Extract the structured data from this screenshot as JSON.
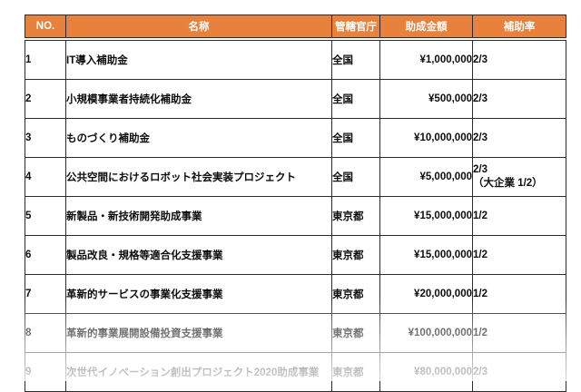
{
  "table": {
    "headers": {
      "no": "NO.",
      "name": "名称",
      "agency": "管轄官庁",
      "amount": "助成金額",
      "rate": "補助率"
    },
    "rows": [
      {
        "no": "1",
        "name": "IT導入補助金",
        "agency": "全国",
        "amount": "¥1,000,000",
        "rate": "2/3",
        "rate_note": ""
      },
      {
        "no": "2",
        "name": "小規模事業者持続化補助金",
        "agency": "全国",
        "amount": "¥500,000",
        "rate": "2/3",
        "rate_note": ""
      },
      {
        "no": "3",
        "name": "ものづくり補助金",
        "agency": "全国",
        "amount": "¥10,000,000",
        "rate": "2/3",
        "rate_note": ""
      },
      {
        "no": "4",
        "name": "公共空間におけるロボット社会実装プロジェクト",
        "agency": "全国",
        "amount": "¥5,000,000",
        "rate": "2/3",
        "rate_note": "（大企業 1/2）"
      },
      {
        "no": "5",
        "name": "新製品・新技術開発助成事業",
        "agency": "東京都",
        "amount": "¥15,000,000",
        "rate": "1/2",
        "rate_note": ""
      },
      {
        "no": "6",
        "name": "製品改良・規格等適合化支援事業",
        "agency": "東京都",
        "amount": "¥15,000,000",
        "rate": "1/2",
        "rate_note": ""
      },
      {
        "no": "7",
        "name": "革新的サービスの事業化支援事業",
        "agency": "東京都",
        "amount": "¥20,000,000",
        "rate": "1/2",
        "rate_note": ""
      },
      {
        "no": "8",
        "name": "革新的事業展開設備投資支援事業",
        "agency": "東京都",
        "amount": "¥100,000,000",
        "rate": "1/2",
        "rate_note": ""
      },
      {
        "no": "9",
        "name": "次世代イノベーション創出プロジェクト2020助成事業",
        "agency": "東京都",
        "amount": "¥80,000,000",
        "rate": "2/3",
        "rate_note": ""
      }
    ]
  },
  "colors": {
    "header_bg": "#E8813C",
    "header_text": "#FFFFFF",
    "border": "#2B2B2B",
    "body_text": "#0D0D0D"
  }
}
